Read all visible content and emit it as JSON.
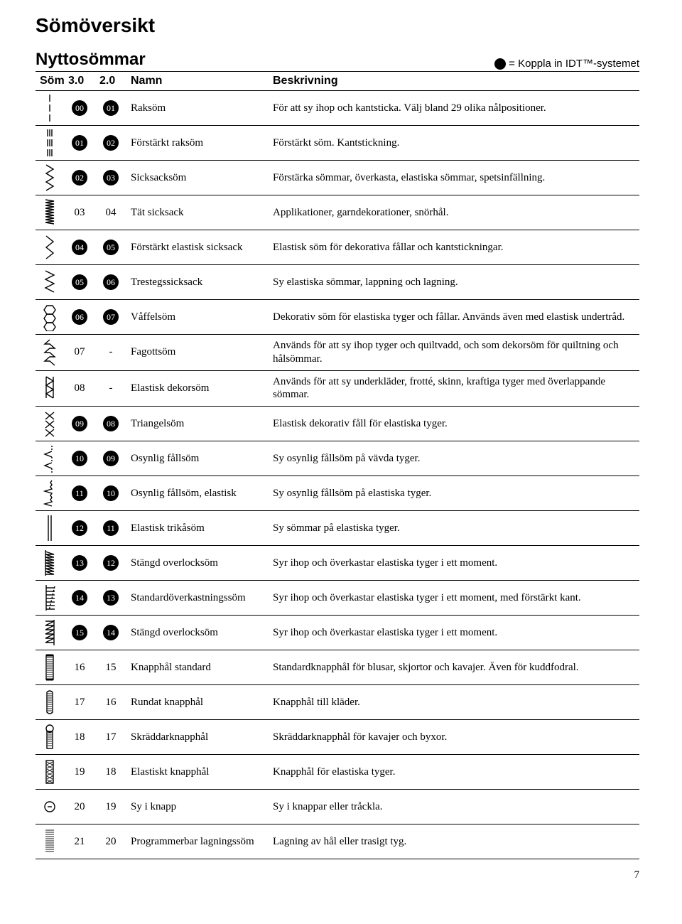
{
  "page_title": "Sömöversikt",
  "section_title": "Nyttosömmar",
  "legend_text": "= Koppla in IDT™-systemet",
  "page_number": "7",
  "columns": {
    "stitch": "Söm",
    "col30": "3.0",
    "col20": "2.0",
    "name": "Namn",
    "desc": "Beskrivning"
  },
  "rows": [
    {
      "idt": true,
      "c30": "00",
      "c20": "01",
      "name": "Raksöm",
      "desc": "För att sy ihop och kantsticka. Välj bland 29 olika nålpositioner.",
      "stitch": "straight"
    },
    {
      "idt": true,
      "c30": "01",
      "c20": "02",
      "name": "Förstärkt raksöm",
      "desc": "Förstärkt söm. Kantstickning.",
      "stitch": "tristraight"
    },
    {
      "idt": true,
      "c30": "02",
      "c20": "03",
      "name": "Sicksacksöm",
      "desc": "Förstärka sömmar, överkasta, elastiska sömmar, spetsinfällning.",
      "stitch": "zigzag"
    },
    {
      "idt": false,
      "c30": "03",
      "c20": "04",
      "name": "Tät sicksack",
      "desc": "Applikationer, garndekorationer, snörhål.",
      "stitch": "densezig"
    },
    {
      "idt": true,
      "c30": "04",
      "c20": "05",
      "name": "Förstärkt elastisk sicksack",
      "desc": "Elastisk söm för dekorativa fållar och kantstickningar.",
      "stitch": "ricrac"
    },
    {
      "idt": true,
      "c30": "05",
      "c20": "06",
      "name": "Trestegssicksack",
      "desc": "Sy elastiska sömmar, lappning och lagning.",
      "stitch": "threestep"
    },
    {
      "idt": true,
      "c30": "06",
      "c20": "07",
      "name": "Våffelsöm",
      "desc": "Dekorativ söm för elastiska tyger och fållar. Används även med elastisk undertråd.",
      "stitch": "honeycomb"
    },
    {
      "idt": false,
      "c30": "07",
      "c20": "-",
      "name": "Fagottsöm",
      "desc": "Används för att sy ihop tyger och quiltvadd, och som dekorsöm för quiltning och hålsömmar.",
      "stitch": "fagot"
    },
    {
      "idt": false,
      "c30": "08",
      "c20": "-",
      "name": "Elastisk dekorsöm",
      "desc": "Används för att sy underkläder, frotté, skinn, kraftiga tyger med överlappande sömmar.",
      "stitch": "bridging"
    },
    {
      "idt": true,
      "c30": "09",
      "c20": "08",
      "name": "Triangelsöm",
      "desc": "Elastisk dekorativ fåll för elastiska tyger.",
      "stitch": "crossed"
    },
    {
      "idt": true,
      "c30": "10",
      "c20": "09",
      "name": "Osynlig fållsöm",
      "desc": "Sy osynlig fållsöm på vävda tyger.",
      "stitch": "blind"
    },
    {
      "idt": true,
      "c30": "11",
      "c20": "10",
      "name": "Osynlig fållsöm, elastisk",
      "desc": "Sy osynlig fållsöm på elastiska tyger.",
      "stitch": "blindel"
    },
    {
      "idt": true,
      "c30": "12",
      "c20": "11",
      "name": "Elastisk trikåsöm",
      "desc": "Sy sömmar på elastiska tyger.",
      "stitch": "tricot"
    },
    {
      "idt": true,
      "c30": "13",
      "c20": "12",
      "name": "Stängd overlocksöm",
      "desc": "Syr ihop och överkastar elastiska tyger i ett moment.",
      "stitch": "closedover"
    },
    {
      "idt": true,
      "c30": "14",
      "c20": "13",
      "name": "Standardöverkastningssöm",
      "desc": "Syr ihop och överkastar elastiska tyger i ett moment, med förstärkt kant.",
      "stitch": "stdover"
    },
    {
      "idt": true,
      "c30": "15",
      "c20": "14",
      "name": "Stängd overlocksöm",
      "desc": "Syr ihop och överkastar elastiska tyger i ett moment.",
      "stitch": "closedover2"
    },
    {
      "idt": false,
      "c30": "16",
      "c20": "15",
      "name": "Knapphål standard",
      "desc": "Standardknapphål för blusar, skjortor och kavajer. Även för kuddfodral.",
      "stitch": "bhstd"
    },
    {
      "idt": false,
      "c30": "17",
      "c20": "16",
      "name": "Rundat knapphål",
      "desc": "Knapphål till kläder.",
      "stitch": "bhround"
    },
    {
      "idt": false,
      "c30": "18",
      "c20": "17",
      "name": "Skräddarknapphål",
      "desc": "Skräddarknapphål för kavajer och byxor.",
      "stitch": "bhkey"
    },
    {
      "idt": false,
      "c30": "19",
      "c20": "18",
      "name": "Elastiskt knapphål",
      "desc": "Knapphål för elastiska tyger.",
      "stitch": "bhstretch"
    },
    {
      "idt": false,
      "c30": "20",
      "c20": "19",
      "name": "Sy i knapp",
      "desc": "Sy i knappar eller tråckla.",
      "stitch": "button"
    },
    {
      "idt": false,
      "c30": "21",
      "c20": "20",
      "name": "Programmerbar lagningssöm",
      "desc": "Lagning av hål eller trasigt tyg.",
      "stitch": "darn"
    }
  ]
}
